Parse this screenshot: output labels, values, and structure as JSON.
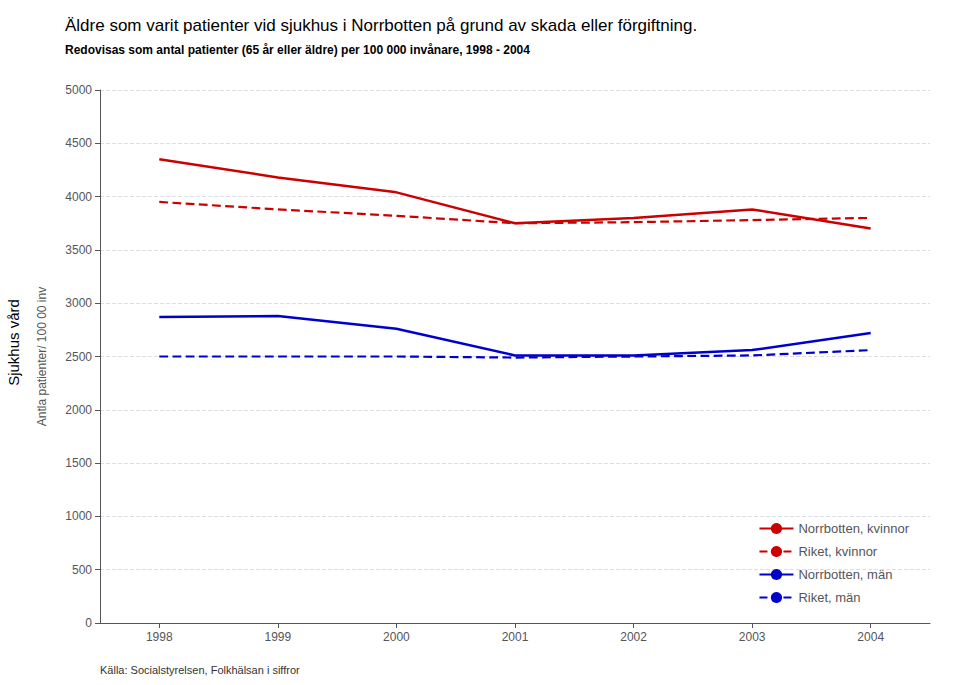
{
  "chart_data": {
    "type": "line",
    "title": "Äldre som varit patienter vid sjukhus i Norrbotten på grund av skada eller förgiftning.",
    "subtitle": "Redovisas som antal patienter (65 år eller äldre) per 100 000 invånare, 1998 - 2004",
    "ylabel": "Antla patienter/ 100 00 inv",
    "annotations": [
      "Sjukhus vård",
      "Källa: Socialstyrelsen, Folkhälsan i siffror"
    ],
    "x": [
      1998,
      1999,
      2000,
      2001,
      2002,
      2003,
      2004
    ],
    "series": [
      {
        "name": "Norrbotten, kvinnor",
        "color": "#CC0000",
        "line_style": "solid",
        "values": [
          4350,
          4180,
          4040,
          3750,
          3800,
          3880,
          3700
        ]
      },
      {
        "name": "Riket, kvinnor",
        "color": "#CC0000",
        "line_style": "dashed",
        "values": [
          3950,
          3880,
          3820,
          3750,
          3760,
          3780,
          3800
        ]
      },
      {
        "name": "Norrbotten, män",
        "color": "#0000CC",
        "line_style": "solid",
        "values": [
          2870,
          2880,
          2760,
          2510,
          2510,
          2560,
          2720
        ]
      },
      {
        "name": "Riket, män",
        "color": "#0000CC",
        "line_style": "dashed",
        "values": [
          2500,
          2500,
          2500,
          2490,
          2500,
          2510,
          2560
        ]
      }
    ],
    "xlim": [
      1997.5,
      2004.5
    ],
    "xticks": [
      1998,
      1999,
      2000,
      2001,
      2002,
      2003,
      2004
    ],
    "ylim": [
      0,
      5000
    ],
    "yticks": [
      0,
      500,
      1000,
      1500,
      2000,
      2500,
      3000,
      3500,
      4000,
      4500,
      5000
    ],
    "grid": true,
    "legend": "lower right"
  }
}
